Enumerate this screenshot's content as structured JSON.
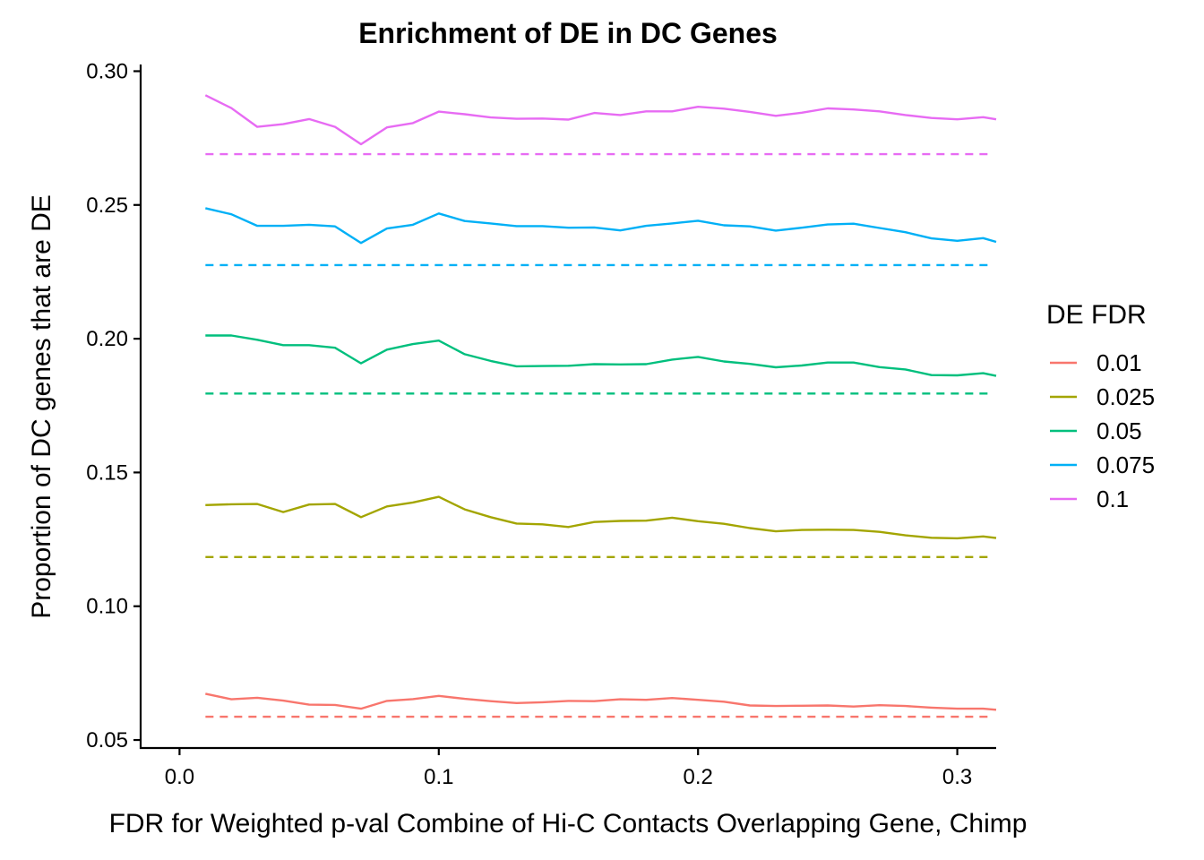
{
  "chart_data": {
    "type": "line",
    "title": "Enrichment of DE in DC Genes",
    "xlabel": "FDR for Weighted p-val Combine of Hi-C Contacts Overlapping Gene, Chimp",
    "ylabel": "Proportion of DC genes that are DE",
    "xlim": [
      -0.015,
      0.315
    ],
    "ylim": [
      0.047,
      0.3025
    ],
    "x_ticks": [
      0.0,
      0.1,
      0.2,
      0.3
    ],
    "x_tick_labels": [
      "0.0",
      "0.1",
      "0.2",
      "0.3"
    ],
    "y_ticks": [
      0.05,
      0.1,
      0.15,
      0.2,
      0.25,
      0.3
    ],
    "y_tick_labels": [
      "0.05",
      "0.10",
      "0.15",
      "0.20",
      "0.25",
      "0.30"
    ],
    "grid": false,
    "legend": {
      "title": "DE FDR",
      "position": "right"
    },
    "x": [
      0.01,
      0.02,
      0.03,
      0.04,
      0.05,
      0.06,
      0.07,
      0.08,
      0.09,
      0.1,
      0.11,
      0.12,
      0.13,
      0.14,
      0.15,
      0.16,
      0.17,
      0.18,
      0.19,
      0.2,
      0.21,
      0.22,
      0.23,
      0.24,
      0.25,
      0.26,
      0.27,
      0.28,
      0.29,
      0.3,
      0.31,
      0.315
    ],
    "series": [
      {
        "name": "0.01",
        "color": "#F8766D",
        "baseline": 0.0587,
        "values": [
          0.0673,
          0.0652,
          0.0658,
          0.0647,
          0.0632,
          0.0631,
          0.0617,
          0.0646,
          0.0653,
          0.0665,
          0.0654,
          0.0645,
          0.0638,
          0.0641,
          0.0646,
          0.0645,
          0.0652,
          0.065,
          0.0657,
          0.065,
          0.0643,
          0.0629,
          0.0627,
          0.0628,
          0.0629,
          0.0625,
          0.063,
          0.0627,
          0.0621,
          0.0617,
          0.0617,
          0.0613
        ]
      },
      {
        "name": "0.025",
        "color": "#A3A500",
        "baseline": 0.1184,
        "values": [
          0.1378,
          0.1381,
          0.1382,
          0.1352,
          0.138,
          0.1382,
          0.1333,
          0.1373,
          0.1388,
          0.1409,
          0.1362,
          0.1333,
          0.1309,
          0.1306,
          0.1296,
          0.1315,
          0.1319,
          0.132,
          0.1331,
          0.1318,
          0.1308,
          0.1292,
          0.128,
          0.1285,
          0.1286,
          0.1285,
          0.1278,
          0.1265,
          0.1256,
          0.1254,
          0.1261,
          0.1255
        ]
      },
      {
        "name": "0.05",
        "color": "#00BF7D",
        "baseline": 0.1795,
        "values": [
          0.2012,
          0.2012,
          0.1996,
          0.1976,
          0.1976,
          0.1966,
          0.1908,
          0.1959,
          0.198,
          0.1993,
          0.1942,
          0.1917,
          0.1897,
          0.1898,
          0.1899,
          0.1905,
          0.1904,
          0.1905,
          0.1922,
          0.1932,
          0.1915,
          0.1906,
          0.1893,
          0.19,
          0.1911,
          0.1911,
          0.1894,
          0.1885,
          0.1864,
          0.1863,
          0.1871,
          0.1861
        ]
      },
      {
        "name": "0.075",
        "color": "#00B0F6",
        "baseline": 0.2275,
        "values": [
          0.2488,
          0.2465,
          0.2422,
          0.2422,
          0.2426,
          0.242,
          0.2358,
          0.2412,
          0.2426,
          0.2468,
          0.244,
          0.2431,
          0.2421,
          0.2421,
          0.2415,
          0.2416,
          0.2405,
          0.2422,
          0.2431,
          0.2441,
          0.2424,
          0.242,
          0.2404,
          0.2415,
          0.2427,
          0.243,
          0.2414,
          0.2398,
          0.2375,
          0.2366,
          0.2376,
          0.2362
        ]
      },
      {
        "name": "0.1",
        "color": "#E76BF3",
        "baseline": 0.269,
        "values": [
          0.291,
          0.2862,
          0.2792,
          0.2802,
          0.2821,
          0.2792,
          0.2727,
          0.279,
          0.2806,
          0.2849,
          0.2839,
          0.2827,
          0.2822,
          0.2823,
          0.2819,
          0.2844,
          0.2836,
          0.285,
          0.285,
          0.2867,
          0.286,
          0.2848,
          0.2833,
          0.2845,
          0.2861,
          0.2857,
          0.285,
          0.2836,
          0.2825,
          0.282,
          0.2828,
          0.282
        ]
      }
    ]
  }
}
